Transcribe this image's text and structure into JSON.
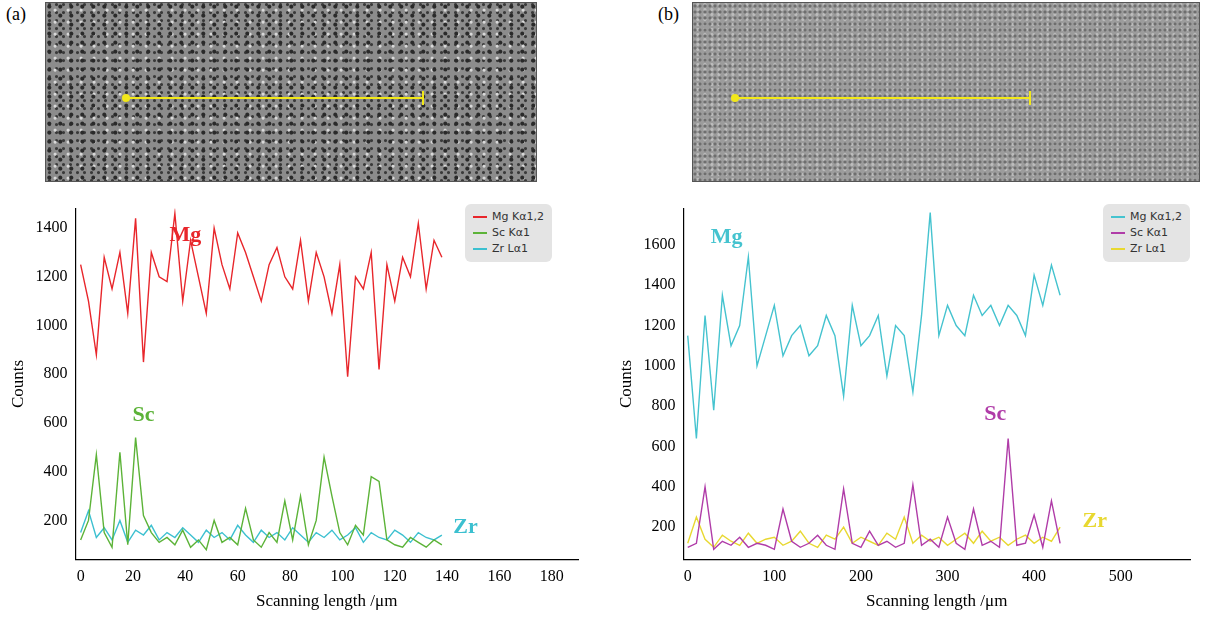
{
  "chart_data": [
    {
      "type": "line",
      "panel_label": "(a)",
      "x_label": "Scanning length /μm",
      "y_label": "Counts",
      "grid": false,
      "legend": "upper right",
      "xlim": [
        -2,
        190
      ],
      "xticks": [
        0,
        20,
        40,
        60,
        80,
        100,
        120,
        140,
        160,
        180
      ],
      "ylim": [
        40,
        1480
      ],
      "yticks": [
        200,
        400,
        600,
        800,
        1000,
        1200,
        1400
      ],
      "x": [
        0,
        3,
        6,
        9,
        12,
        15,
        18,
        21,
        24,
        27,
        30,
        33,
        36,
        39,
        42,
        45,
        48,
        51,
        54,
        57,
        60,
        63,
        66,
        69,
        72,
        75,
        78,
        81,
        84,
        87,
        90,
        93,
        96,
        99,
        102,
        105,
        108,
        111,
        114,
        117,
        120,
        123,
        126,
        129,
        132,
        135,
        138
      ],
      "series": [
        {
          "name": "Mg Kα1,2",
          "color": "#e8262b",
          "values": [
            1250,
            1100,
            880,
            1280,
            1150,
            1300,
            1050,
            1440,
            850,
            1300,
            1200,
            1180,
            1460,
            1100,
            1350,
            1200,
            1050,
            1400,
            1250,
            1150,
            1380,
            1300,
            1200,
            1100,
            1250,
            1320,
            1200,
            1150,
            1350,
            1100,
            1300,
            1200,
            1050,
            1250,
            790,
            1200,
            1150,
            1300,
            820,
            1250,
            1100,
            1280,
            1200,
            1420,
            1150,
            1350,
            1280
          ]
        },
        {
          "name": "Sc Kα1",
          "color": "#5cb338",
          "values": [
            120,
            200,
            470,
            150,
            90,
            480,
            100,
            540,
            220,
            150,
            110,
            130,
            100,
            160,
            90,
            120,
            80,
            200,
            110,
            130,
            100,
            250,
            120,
            90,
            150,
            110,
            280,
            120,
            300,
            100,
            200,
            460,
            300,
            150,
            100,
            180,
            140,
            380,
            360,
            120,
            100,
            90,
            130,
            110,
            90,
            120,
            100
          ]
        },
        {
          "name": "Zr Lα1",
          "color": "#3cc0d0",
          "values": [
            150,
            240,
            130,
            170,
            120,
            200,
            110,
            160,
            140,
            180,
            120,
            150,
            130,
            170,
            140,
            110,
            160,
            130,
            150,
            120,
            180,
            140,
            110,
            160,
            130,
            150,
            120,
            170,
            140,
            110,
            150,
            130,
            160,
            120,
            140,
            170,
            110,
            150,
            130,
            120,
            160,
            140,
            110,
            150,
            130,
            120,
            140
          ]
        }
      ],
      "annotations": [
        {
          "text": "Mg",
          "x": 40,
          "y": 1370,
          "color": "#e8262b"
        },
        {
          "text": "Sc",
          "x": 24,
          "y": 630,
          "color": "#5cb338"
        },
        {
          "text": "Zr",
          "x": 147,
          "y": 170,
          "color": "#3cc0d0"
        }
      ]
    },
    {
      "type": "line",
      "panel_label": "(b)",
      "x_label": "Scanning length /μm",
      "y_label": "Counts",
      "grid": false,
      "legend": "upper right",
      "xlim": [
        -5,
        580
      ],
      "xticks": [
        0,
        100,
        200,
        300,
        400,
        500
      ],
      "ylim": [
        40,
        1780
      ],
      "yticks": [
        200,
        400,
        600,
        800,
        1000,
        1200,
        1400,
        1600
      ],
      "x": [
        0,
        10,
        20,
        30,
        40,
        50,
        60,
        70,
        80,
        90,
        100,
        110,
        120,
        130,
        140,
        150,
        160,
        170,
        180,
        190,
        200,
        210,
        220,
        230,
        240,
        250,
        260,
        270,
        280,
        290,
        300,
        310,
        320,
        330,
        340,
        350,
        360,
        370,
        380,
        390,
        400,
        410,
        420,
        430
      ],
      "series": [
        {
          "name": "Mg Kα1,2",
          "color": "#45c3cf",
          "values": [
            1150,
            640,
            1250,
            780,
            1350,
            1100,
            1200,
            1540,
            1000,
            1150,
            1300,
            1050,
            1150,
            1200,
            1050,
            1100,
            1250,
            1150,
            850,
            1300,
            1100,
            1150,
            1250,
            950,
            1200,
            1150,
            870,
            1250,
            1760,
            1150,
            1300,
            1200,
            1150,
            1350,
            1250,
            1300,
            1200,
            1300,
            1250,
            1150,
            1450,
            1300,
            1500,
            1350
          ]
        },
        {
          "name": "Sc Kα1",
          "color": "#b03ca8",
          "values": [
            100,
            120,
            400,
            90,
            130,
            110,
            150,
            100,
            120,
            110,
            90,
            290,
            130,
            100,
            120,
            160,
            110,
            90,
            390,
            120,
            100,
            180,
            110,
            130,
            100,
            120,
            410,
            110,
            140,
            100,
            250,
            120,
            90,
            290,
            110,
            130,
            100,
            640,
            110,
            120,
            260,
            100,
            330,
            120
          ]
        },
        {
          "name": "Zr Lα1",
          "color": "#e8d830",
          "values": [
            120,
            250,
            140,
            100,
            160,
            130,
            110,
            170,
            120,
            140,
            150,
            110,
            130,
            180,
            120,
            100,
            160,
            140,
            200,
            120,
            150,
            130,
            110,
            170,
            140,
            250,
            120,
            160,
            130,
            150,
            110,
            140,
            170,
            120,
            180,
            130,
            150,
            110,
            140,
            160,
            120,
            150,
            130,
            200
          ]
        }
      ],
      "annotations": [
        {
          "text": "Mg",
          "x": 45,
          "y": 1640,
          "color": "#45c3cf"
        },
        {
          "text": "Sc",
          "x": 355,
          "y": 760,
          "color": "#b03ca8"
        },
        {
          "text": "Zr",
          "x": 470,
          "y": 230,
          "color": "#e8d830"
        }
      ]
    }
  ]
}
